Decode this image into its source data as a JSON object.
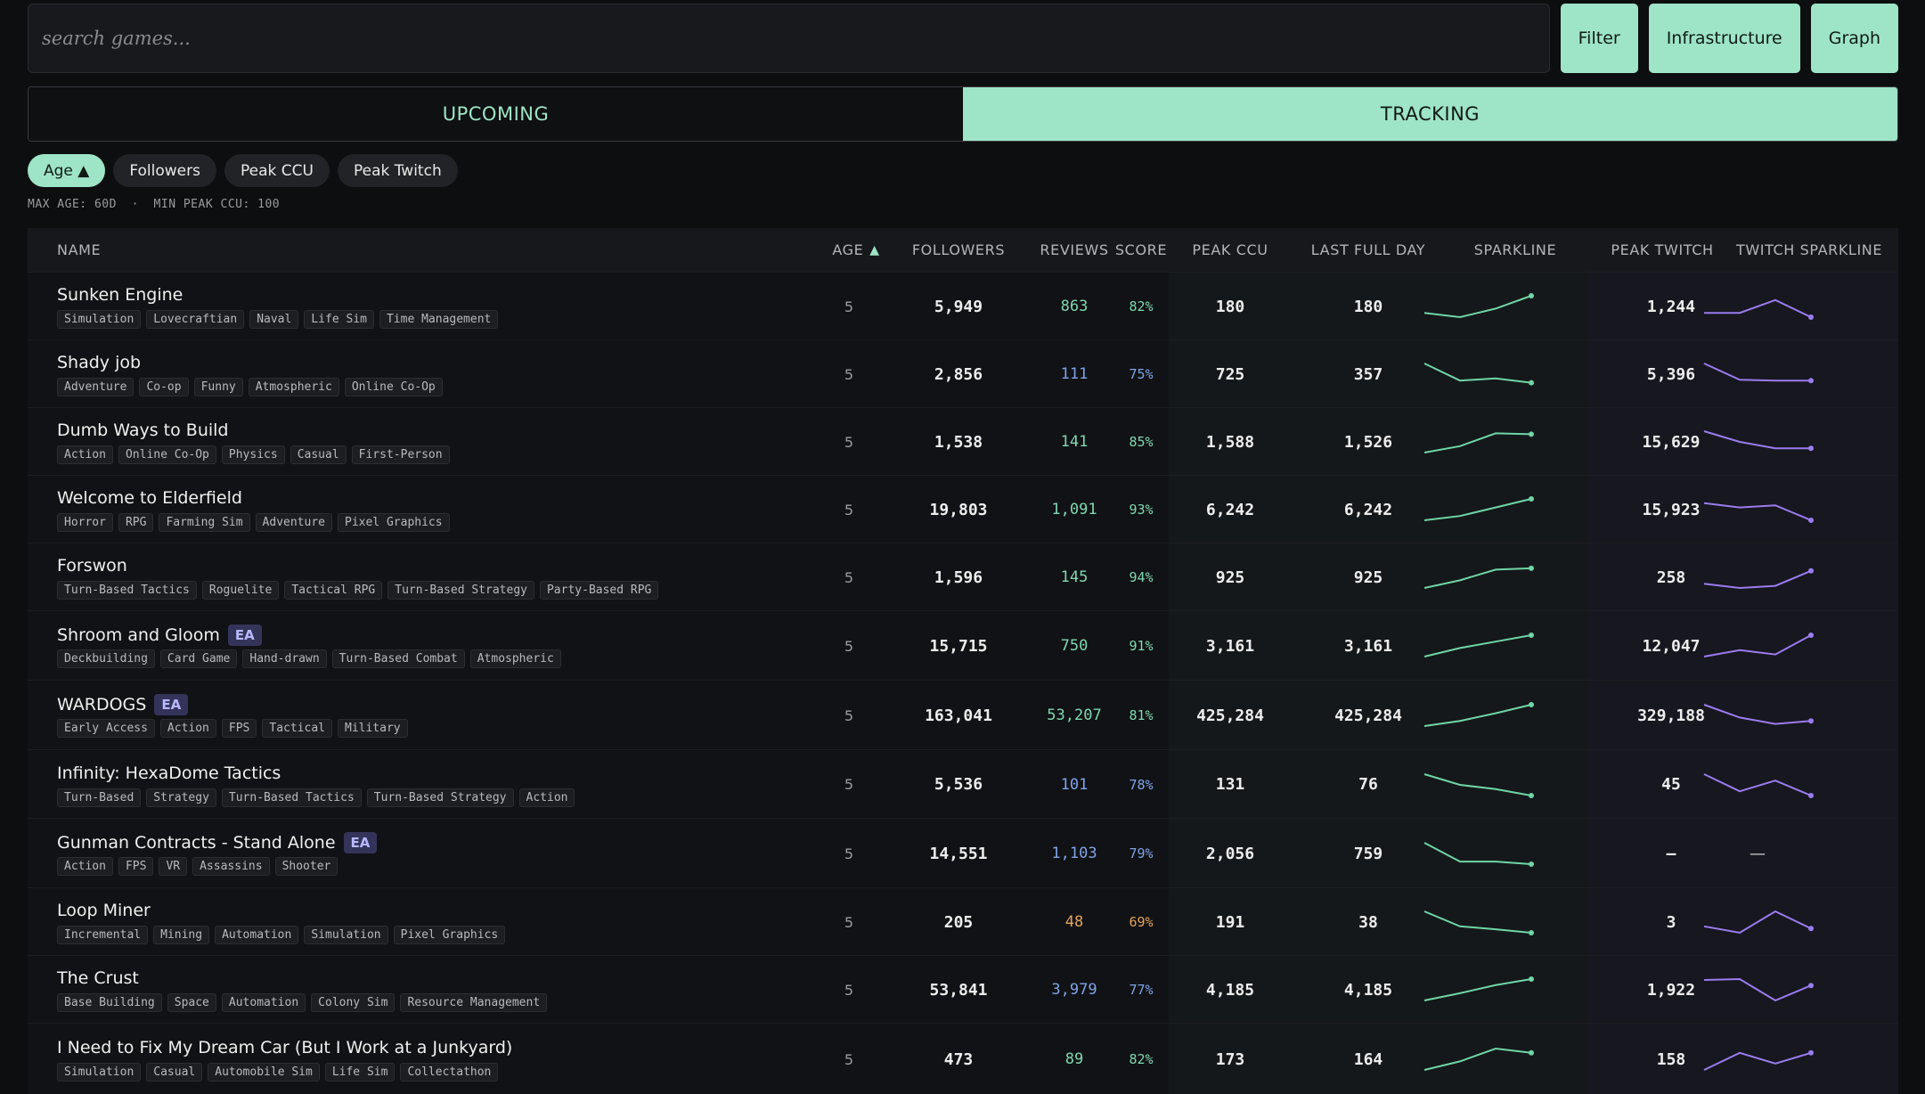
{
  "search": {
    "placeholder": "search games..."
  },
  "toolbar": {
    "filter_label": "Filter",
    "infrastructure_label": "Infrastructure",
    "graph_label": "Graph"
  },
  "tabs": [
    {
      "label": "UPCOMING",
      "active": false
    },
    {
      "label": "TRACKING",
      "active": true
    }
  ],
  "sort_pills": [
    {
      "label": "Age ▲",
      "active": true
    },
    {
      "label": "Followers",
      "active": false
    },
    {
      "label": "Peak CCU",
      "active": false
    },
    {
      "label": "Peak Twitch",
      "active": false
    }
  ],
  "filter_summary": "MAX AGE: 60D  ·  MIN PEAK CCU: 100",
  "columns": {
    "name": "NAME",
    "age": "AGE",
    "age_sort_icon": "▲",
    "followers": "FOLLOWERS",
    "reviews": "REVIEWS",
    "score": "SCORE",
    "peak_ccu": "PEAK CCU",
    "last_full_day": "LAST FULL DAY",
    "sparkline": "SPARKLINE",
    "peak_twitch": "PEAK TWITCH",
    "twitch_sparkline": "TWITCH SPARKLINE"
  },
  "colors": {
    "accent": "#9ee4c6",
    "sparkline": "#6fd6a6",
    "twitch_sparkline": "#9a7cf0",
    "reviews_green": "#7fd8b0",
    "reviews_blue": "#7fa3e8",
    "reviews_orange": "#e3a45a"
  },
  "rows": [
    {
      "name": "Sunken Engine",
      "ea": "",
      "tags": [
        "Simulation",
        "Lovecraftian",
        "Naval",
        "Life Sim",
        "Time Management"
      ],
      "age": "5",
      "followers": "5,949",
      "reviews": "863",
      "reviews_tone": "green",
      "score": "82%",
      "peak_ccu": "180",
      "last_full_day": "180",
      "peak_twitch": "1,244",
      "spark": [
        1,
        0,
        2,
        5
      ],
      "twitch_spark": [
        1,
        1,
        4,
        0
      ]
    },
    {
      "name": "Shady job",
      "ea": "",
      "tags": [
        "Adventure",
        "Co-op",
        "Funny",
        "Atmospheric",
        "Online Co-Op"
      ],
      "age": "5",
      "followers": "2,856",
      "reviews": "111",
      "reviews_tone": "blue",
      "score": "75%",
      "peak_ccu": "725",
      "last_full_day": "357",
      "peak_twitch": "5,396",
      "spark": [
        5,
        1,
        1.5,
        0.5
      ],
      "twitch_spark": [
        5,
        1.2,
        1,
        1
      ]
    },
    {
      "name": "Dumb Ways to Build",
      "ea": "",
      "tags": [
        "Action",
        "Online Co-Op",
        "Physics",
        "Casual",
        "First-Person"
      ],
      "age": "5",
      "followers": "1,538",
      "reviews": "141",
      "reviews_tone": "green",
      "score": "85%",
      "peak_ccu": "1,588",
      "last_full_day": "1,526",
      "peak_twitch": "15,629",
      "spark": [
        0,
        1.5,
        4.5,
        4.3
      ],
      "twitch_spark": [
        5,
        2.5,
        1,
        1
      ]
    },
    {
      "name": "Welcome to Elderfield",
      "ea": "",
      "tags": [
        "Horror",
        "RPG",
        "Farming Sim",
        "Adventure",
        "Pixel Graphics"
      ],
      "age": "5",
      "followers": "19,803",
      "reviews": "1,091",
      "reviews_tone": "green",
      "score": "93%",
      "peak_ccu": "6,242",
      "last_full_day": "6,242",
      "peak_twitch": "15,923",
      "spark": [
        0,
        1,
        3,
        5
      ],
      "twitch_spark": [
        4,
        3,
        3.5,
        0
      ]
    },
    {
      "name": "Forswon",
      "ea": "",
      "tags": [
        "Turn-Based Tactics",
        "Roguelite",
        "Tactical RPG",
        "Turn-Based Strategy",
        "Party-Based RPG"
      ],
      "age": "5",
      "followers": "1,596",
      "reviews": "145",
      "reviews_tone": "green",
      "score": "94%",
      "peak_ccu": "925",
      "last_full_day": "925",
      "peak_twitch": "258",
      "spark": [
        0,
        1.8,
        4.3,
        4.6
      ],
      "twitch_spark": [
        1,
        0,
        0.5,
        4
      ]
    },
    {
      "name": "Shroom and Gloom",
      "ea": "EA",
      "tags": [
        "Deckbuilding",
        "Card Game",
        "Hand-drawn",
        "Turn-Based Combat",
        "Atmospheric"
      ],
      "age": "5",
      "followers": "15,715",
      "reviews": "750",
      "reviews_tone": "green",
      "score": "91%",
      "peak_ccu": "3,161",
      "last_full_day": "3,161",
      "peak_twitch": "12,047",
      "spark": [
        0,
        2,
        3.5,
        5
      ],
      "twitch_spark": [
        0,
        1.5,
        0.5,
        5
      ]
    },
    {
      "name": "WARDOGS",
      "ea": "EA",
      "tags": [
        "Early Access",
        "Action",
        "FPS",
        "Tactical",
        "Military"
      ],
      "age": "5",
      "followers": "163,041",
      "reviews": "53,207",
      "reviews_tone": "green",
      "score": "81%",
      "peak_ccu": "425,284",
      "last_full_day": "425,284",
      "peak_twitch": "329,188",
      "spark": [
        0,
        1.2,
        3,
        5
      ],
      "twitch_spark": [
        5,
        2,
        0.5,
        1.2
      ]
    },
    {
      "name": "Infinity: HexaDome Tactics",
      "ea": "",
      "tags": [
        "Turn-Based",
        "Strategy",
        "Turn-Based Tactics",
        "Turn-Based Strategy",
        "Action"
      ],
      "age": "5",
      "followers": "5,536",
      "reviews": "101",
      "reviews_tone": "blue",
      "score": "78%",
      "peak_ccu": "131",
      "last_full_day": "76",
      "peak_twitch": "45",
      "spark": [
        5,
        2.5,
        1.5,
        0
      ],
      "twitch_spark": [
        5,
        1,
        3.5,
        0
      ]
    },
    {
      "name": "Gunman Contracts - Stand Alone",
      "ea": "EA",
      "tags": [
        "Action",
        "FPS",
        "VR",
        "Assassins",
        "Shooter"
      ],
      "age": "5",
      "followers": "14,551",
      "reviews": "1,103",
      "reviews_tone": "blue",
      "score": "79%",
      "peak_ccu": "2,056",
      "last_full_day": "759",
      "peak_twitch": "–",
      "twitch_empty": "—",
      "spark": [
        5,
        0.6,
        0.6,
        0
      ],
      "twitch_spark": []
    },
    {
      "name": "Loop Miner",
      "ea": "",
      "tags": [
        "Incremental",
        "Mining",
        "Automation",
        "Simulation",
        "Pixel Graphics"
      ],
      "age": "5",
      "followers": "205",
      "reviews": "48",
      "reviews_tone": "orange",
      "score": "69%",
      "peak_ccu": "191",
      "last_full_day": "38",
      "peak_twitch": "3",
      "spark": [
        5,
        1.5,
        0.8,
        0
      ],
      "twitch_spark": [
        1.5,
        0,
        5,
        1
      ]
    },
    {
      "name": "The Crust",
      "ea": "",
      "tags": [
        "Base Building",
        "Space",
        "Automation",
        "Colony Sim",
        "Resource Management"
      ],
      "age": "5",
      "followers": "53,841",
      "reviews": "3,979",
      "reviews_tone": "blue",
      "score": "77%",
      "peak_ccu": "4,185",
      "last_full_day": "4,185",
      "peak_twitch": "1,922",
      "spark": [
        0,
        1.7,
        3.6,
        5
      ],
      "twitch_spark": [
        4.8,
        5,
        0,
        3.5
      ]
    },
    {
      "name": "I Need to Fix My Dream Car (But I Work at a Junkyard)",
      "ea": "",
      "tags": [
        "Simulation",
        "Casual",
        "Automobile Sim",
        "Life Sim",
        "Collectathon"
      ],
      "age": "5",
      "followers": "473",
      "reviews": "89",
      "reviews_tone": "green",
      "score": "82%",
      "peak_ccu": "173",
      "last_full_day": "164",
      "peak_twitch": "158",
      "spark": [
        0,
        2,
        5,
        4
      ],
      "twitch_spark": [
        0,
        4,
        1.5,
        4
      ]
    }
  ]
}
